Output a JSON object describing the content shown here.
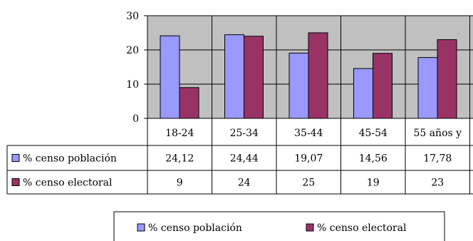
{
  "chart_data": {
    "type": "bar",
    "categories": [
      "18-24",
      "25-34",
      "35-44",
      "45-54",
      "55 años y"
    ],
    "series": [
      {
        "name": "% censo población",
        "values": [
          24.12,
          24.44,
          19.07,
          14.56,
          17.78
        ],
        "display": [
          "24,12",
          "24,44",
          "19,07",
          "14,56",
          "17,78"
        ],
        "color": "#9999ff"
      },
      {
        "name": "% censo electoral",
        "values": [
          9,
          24,
          25,
          19,
          23
        ],
        "display": [
          "9",
          "24",
          "25",
          "19",
          "23"
        ],
        "color": "#993366"
      }
    ],
    "ylim": [
      0,
      30
    ],
    "yticks": [
      0,
      10,
      20,
      30
    ],
    "grid": true,
    "plot_background": "#c0c0c0",
    "legend_position": "bottom",
    "data_table": true
  }
}
